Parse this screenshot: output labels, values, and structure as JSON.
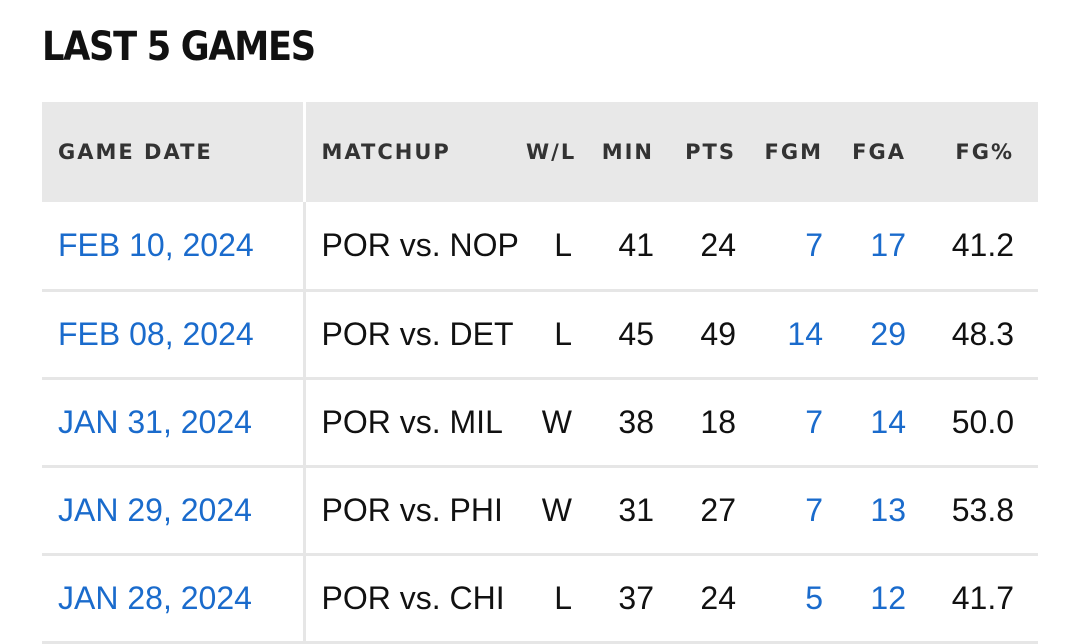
{
  "section_title": "LAST 5 GAMES",
  "colors": {
    "link": "#1a6bcc",
    "header_bg": "#e8e8e8",
    "text": "#111111"
  },
  "table": {
    "headers": {
      "game_date": "GAME DATE",
      "matchup": "MATCHUP",
      "wl": "W/L",
      "min": "MIN",
      "pts": "PTS",
      "fgm": "FGM",
      "fga": "FGA",
      "fgp": "FG%"
    },
    "rows": [
      {
        "game_date": "FEB 10, 2024",
        "matchup": "POR vs. NOP",
        "wl": "L",
        "min": "41",
        "pts": "24",
        "fgm": "7",
        "fga": "17",
        "fgp": "41.2"
      },
      {
        "game_date": "FEB 08, 2024",
        "matchup": "POR vs. DET",
        "wl": "L",
        "min": "45",
        "pts": "49",
        "fgm": "14",
        "fga": "29",
        "fgp": "48.3"
      },
      {
        "game_date": "JAN 31, 2024",
        "matchup": "POR vs. MIL",
        "wl": "W",
        "min": "38",
        "pts": "18",
        "fgm": "7",
        "fga": "14",
        "fgp": "50.0"
      },
      {
        "game_date": "JAN 29, 2024",
        "matchup": "POR vs. PHI",
        "wl": "W",
        "min": "31",
        "pts": "27",
        "fgm": "7",
        "fga": "13",
        "fgp": "53.8"
      },
      {
        "game_date": "JAN 28, 2024",
        "matchup": "POR vs. CHI",
        "wl": "L",
        "min": "37",
        "pts": "24",
        "fgm": "5",
        "fga": "12",
        "fgp": "41.7"
      }
    ]
  }
}
